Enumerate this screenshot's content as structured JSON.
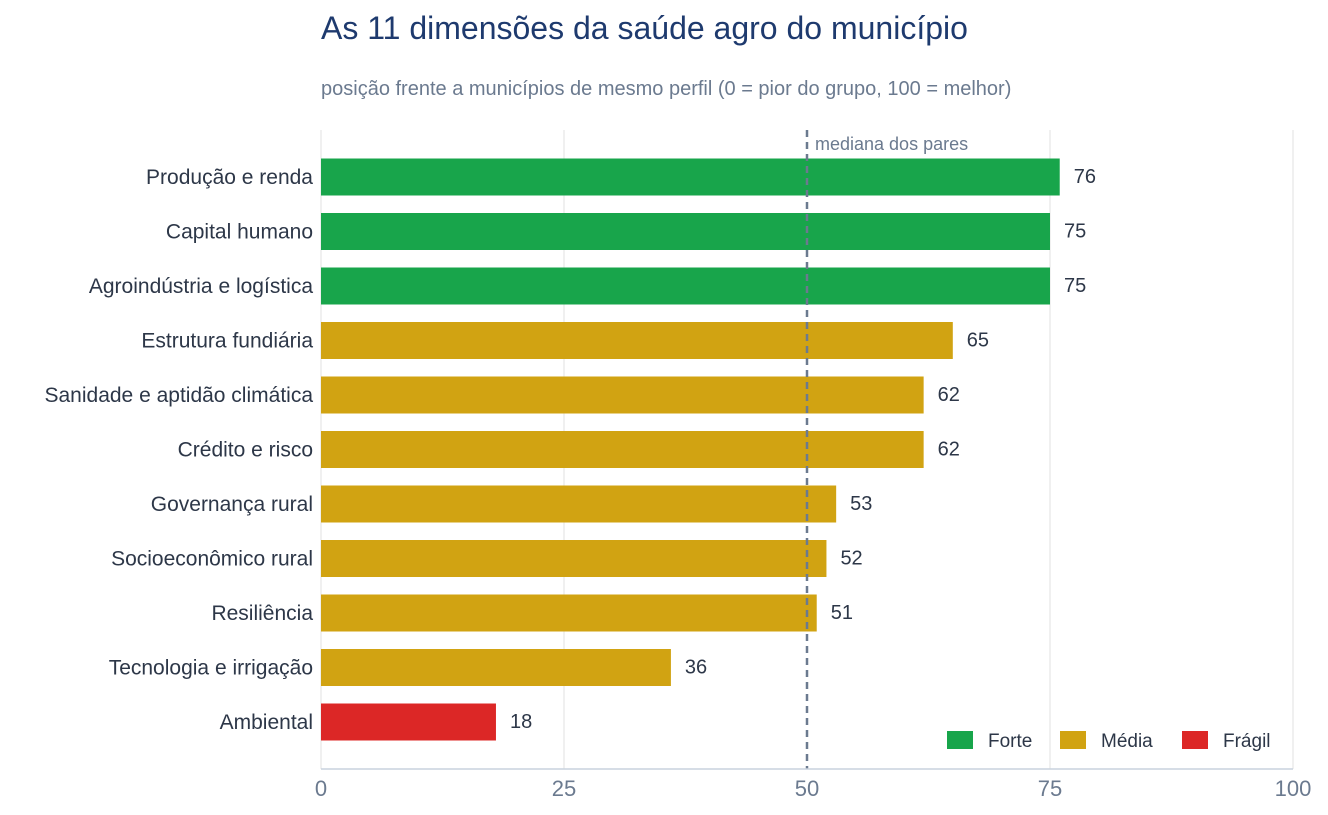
{
  "title": "As 11 dimensões da saúde agro do município",
  "subtitle": "posição frente a municípios de mesmo perfil (0 = pior do grupo, 100 = melhor)",
  "chart_data": {
    "type": "bar",
    "orientation": "horizontal",
    "title": "As 11 dimensões da saúde agro do município",
    "subtitle": "posição frente a municípios de mesmo perfil (0 = pior do grupo, 100 = melhor)",
    "categories": [
      "Produção e renda",
      "Capital humano",
      "Agroindústria e logística",
      "Estrutura fundiária",
      "Sanidade e aptidão climática",
      "Crédito e risco",
      "Governança rural",
      "Socioeconômico rural",
      "Resiliência",
      "Tecnologia e irrigação",
      "Ambiental"
    ],
    "values": [
      76,
      75,
      75,
      65,
      62,
      62,
      53,
      52,
      51,
      36,
      18
    ],
    "classes": [
      "Forte",
      "Forte",
      "Forte",
      "Média",
      "Média",
      "Média",
      "Média",
      "Média",
      "Média",
      "Média",
      "Frágil"
    ],
    "xlim": [
      0,
      100
    ],
    "xticks": [
      0,
      25,
      50,
      75,
      100
    ],
    "grid": true,
    "reference_line": {
      "value": 50,
      "label": "mediana dos pares"
    },
    "legend": {
      "position": "bottom-right",
      "items": [
        {
          "label": "Forte",
          "color": "#18a54b"
        },
        {
          "label": "Média",
          "color": "#d1a312"
        },
        {
          "label": "Frágil",
          "color": "#dc2726"
        }
      ]
    }
  }
}
